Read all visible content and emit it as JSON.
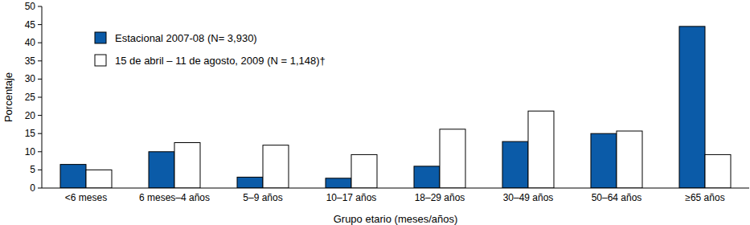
{
  "chart_data": {
    "type": "bar",
    "x_label": "Grupo etario (meses/años)",
    "y_label": "Porcentaje",
    "categories": [
      "<6 meses",
      "6 meses–4 años",
      "5–9 años",
      "10–17 años",
      "18–29 años",
      "30–49 años",
      "50–64 años",
      "≥65 años"
    ],
    "series": [
      {
        "name": "Estacional 2007-08 (N= 3,930)",
        "color": "#0b5ba8",
        "values": [
          6.5,
          10,
          3,
          2.7,
          6,
          12.8,
          15,
          44.5
        ]
      },
      {
        "name": "15 de abril – 11 de agosto, 2009 (N = 1,148)†",
        "color": "#ffffff",
        "values": [
          5,
          12.5,
          11.8,
          9.2,
          16.2,
          21.2,
          15.7,
          9.2
        ]
      }
    ],
    "ylim": [
      0,
      50
    ],
    "yticks": [
      0,
      5,
      10,
      15,
      20,
      25,
      30,
      35,
      40,
      45,
      50
    ],
    "grid": false,
    "legend": "top-left"
  }
}
